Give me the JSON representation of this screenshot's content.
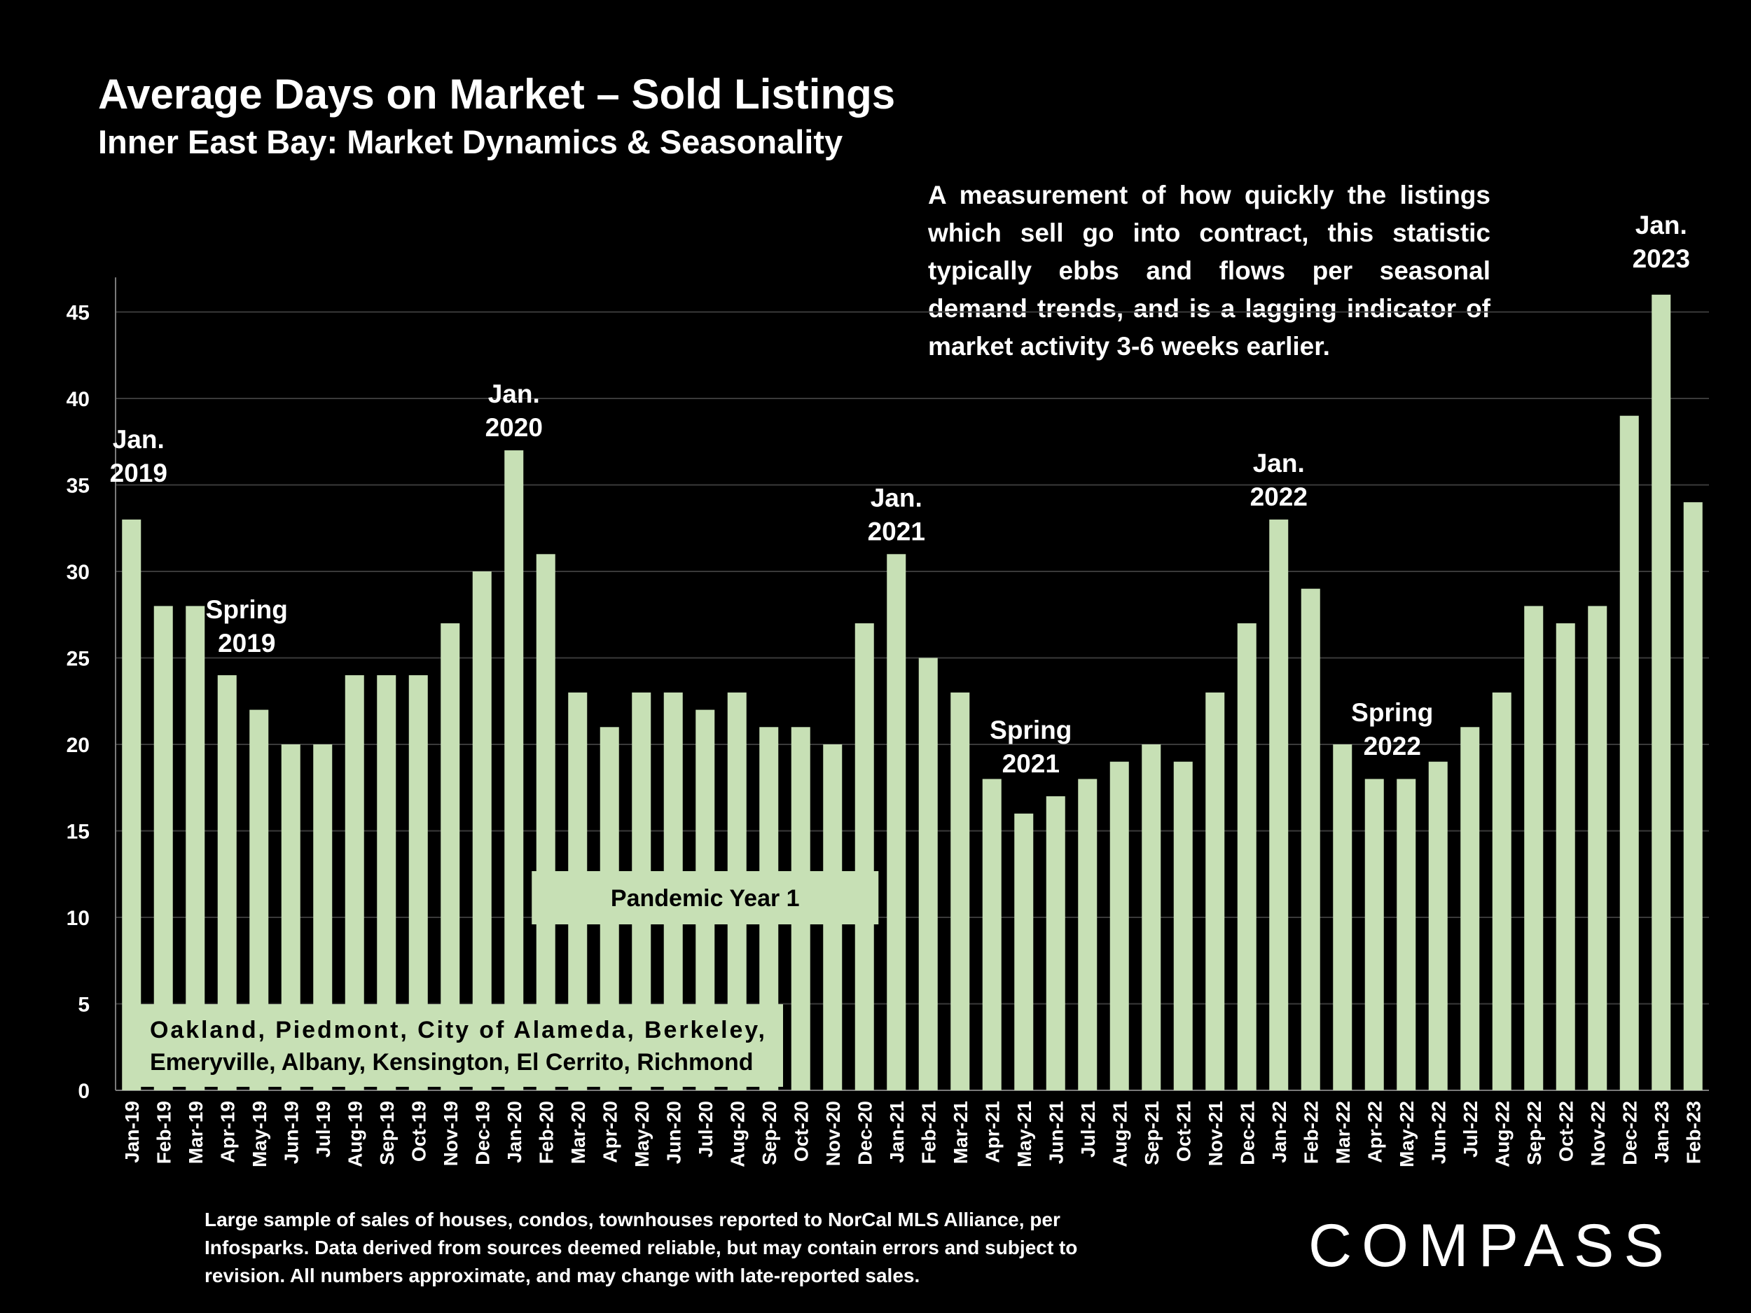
{
  "header": {
    "title": "Average Days on Market – Sold Listings",
    "subtitle": "Inner East Bay: Market Dynamics & Seasonality"
  },
  "description": "A measurement of how quickly the listings which sell go into contract, this statistic typically ebbs and flows per seasonal demand trends, and is a lagging indicator of market activity 3-6 weeks earlier.",
  "footnote": "Large sample of sales of houses, condos, townhouses reported to NorCal MLS Alliance, per Infosparks. Data derived from sources deemed reliable, but may contain errors and subject to revision. All numbers approximate, and may change with late-reported sales.",
  "logo": "COMPASS",
  "colors": {
    "background": "#000000",
    "bar": "#c7e0b5",
    "text": "#ffffff",
    "grid": "#3a3a3a"
  },
  "chart_data": {
    "type": "bar",
    "categories": [
      "Jan-19",
      "Feb-19",
      "Mar-19",
      "Apr-19",
      "May-19",
      "Jun-19",
      "Jul-19",
      "Aug-19",
      "Sep-19",
      "Oct-19",
      "Nov-19",
      "Dec-19",
      "Jan-20",
      "Feb-20",
      "Mar-20",
      "Apr-20",
      "May-20",
      "Jun-20",
      "Jul-20",
      "Aug-20",
      "Sep-20",
      "Oct-20",
      "Nov-20",
      "Dec-20",
      "Jan-21",
      "Feb-21",
      "Mar-21",
      "Apr-21",
      "May-21",
      "Jun-21",
      "Jul-21",
      "Aug-21",
      "Sep-21",
      "Oct-21",
      "Nov-21",
      "Dec-21",
      "Jan-22",
      "Feb-22",
      "Mar-22",
      "Apr-22",
      "May-22",
      "Jun-22",
      "Jul-22",
      "Aug-22",
      "Sep-22",
      "Oct-22",
      "Nov-22",
      "Dec-22",
      "Jan-23",
      "Feb-23"
    ],
    "values": [
      33,
      28,
      28,
      24,
      22,
      20,
      20,
      24,
      24,
      24,
      27,
      30,
      37,
      31,
      23,
      21,
      23,
      23,
      22,
      23,
      21,
      21,
      20,
      27,
      31,
      25,
      23,
      18,
      16,
      17,
      18,
      19,
      20,
      19,
      23,
      27,
      33,
      29,
      20,
      18,
      18,
      19,
      21,
      23,
      28,
      27,
      28,
      39,
      46,
      34
    ],
    "yticks": [
      0,
      5,
      10,
      15,
      20,
      25,
      30,
      35,
      40,
      45
    ],
    "ylim": [
      0,
      47
    ],
    "grid": true,
    "annotations": [
      {
        "lines": [
          "Jan.",
          "2019"
        ],
        "category": "Jan-19"
      },
      {
        "lines": [
          "Spring",
          "2019"
        ],
        "category": "Apr-19"
      },
      {
        "lines": [
          "Jan.",
          "2020"
        ],
        "category": "Jan-20"
      },
      {
        "lines": [
          "Jan.",
          "2021"
        ],
        "category": "Jan-21"
      },
      {
        "lines": [
          "Spring",
          "2021"
        ],
        "category": "May-21"
      },
      {
        "lines": [
          "Jan.",
          "2022"
        ],
        "category": "Jan-22"
      },
      {
        "lines": [
          "Spring",
          "2022"
        ],
        "category": "May-22"
      },
      {
        "lines": [
          "Jan.",
          "2023"
        ],
        "category": "Jan-23"
      }
    ],
    "pandemic_label": "Pandemic Year 1",
    "region_label": [
      "Oakland, Piedmont, City of Alameda, Berkeley,",
      "Emeryville, Albany, Kensington, El Cerrito, Richmond"
    ]
  }
}
